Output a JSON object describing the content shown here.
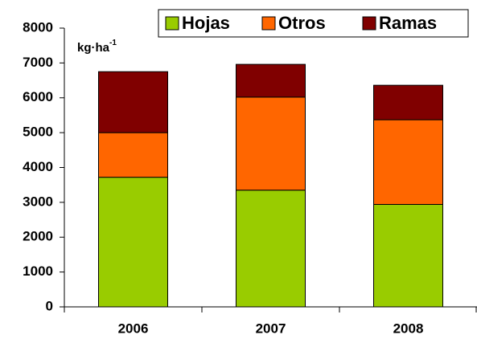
{
  "chart_data": {
    "type": "stacked_bar",
    "unit_label": "kg·ha",
    "unit_exponent": "-1",
    "categories": [
      "2006",
      "2007",
      "2008"
    ],
    "series": [
      {
        "name": "Hojas",
        "color": "#99cc00",
        "values": [
          3720,
          3350,
          2940
        ]
      },
      {
        "name": "Otros",
        "color": "#ff6600",
        "values": [
          1280,
          2670,
          2430
        ]
      },
      {
        "name": "Ramas",
        "color": "#800000",
        "values": [
          1750,
          940,
          990
        ]
      }
    ],
    "ylim": [
      0,
      8000
    ],
    "yticks": [
      0,
      1000,
      2000,
      3000,
      4000,
      5000,
      6000,
      7000,
      8000
    ],
    "legend": "top-right"
  }
}
